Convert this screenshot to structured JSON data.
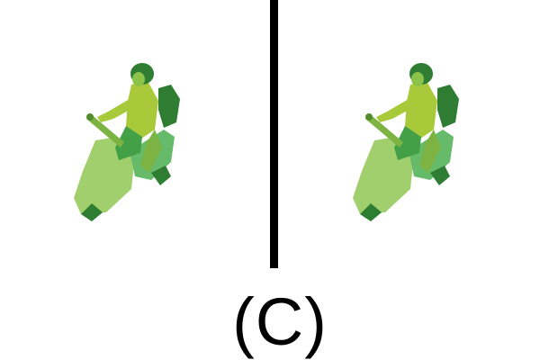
{
  "caption": "(C)",
  "colors": {
    "background": "#ffffff",
    "divider": "#000000",
    "figure_dark": "#2e7d32",
    "figure_mid": "#4caf50",
    "figure_light": "#8bc34a",
    "figure_pale": "#9ccc65",
    "figure_yellow": "#a7c93a"
  },
  "figures": [
    {
      "name": "rider-on-scooter-left"
    },
    {
      "name": "rider-on-scooter-right"
    }
  ]
}
